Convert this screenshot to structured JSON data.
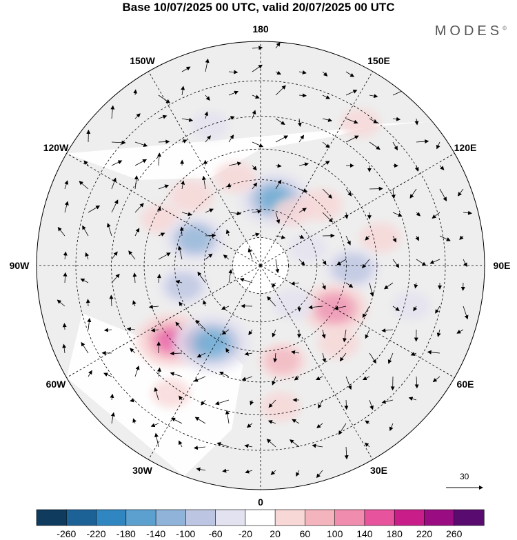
{
  "title": "Base 10/07/2025 00 UTC, valid 20/07/2025 00 UTC",
  "brand": "MODES",
  "brand_mark": "©",
  "longitude_labels": [
    {
      "text": "180",
      "lon": 180
    },
    {
      "text": "150E",
      "lon": 150
    },
    {
      "text": "120E",
      "lon": 120
    },
    {
      "text": "90E",
      "lon": 90
    },
    {
      "text": "60E",
      "lon": 60
    },
    {
      "text": "30E",
      "lon": 30
    },
    {
      "text": "0",
      "lon": 0
    },
    {
      "text": "30W",
      "lon": -30
    },
    {
      "text": "60W",
      "lon": -60
    },
    {
      "text": "90W",
      "lon": -90
    },
    {
      "text": "120W",
      "lon": -120
    },
    {
      "text": "150W",
      "lon": -150
    }
  ],
  "latitude_circles": [
    80,
    70,
    60,
    50,
    40,
    30,
    20
  ],
  "reference_vector_label": "30",
  "colorbar": {
    "ticks": [
      "-260",
      "-220",
      "-180",
      "-140",
      "-100",
      "-60",
      "-20",
      "20",
      "60",
      "100",
      "140",
      "180",
      "220",
      "260"
    ],
    "colors": [
      "#0e3b5e",
      "#1d6296",
      "#2f86c0",
      "#5ca0cf",
      "#8fb3d9",
      "#bcc5e2",
      "#e3e2f0",
      "#ffffff",
      "#f8d7d7",
      "#f4b4be",
      "#f08cae",
      "#e7539d",
      "#c91e8a",
      "#9a0d82",
      "#5a0b6f"
    ]
  },
  "anomalies": [
    {
      "lon": 168,
      "lat": 66,
      "value": -150
    },
    {
      "lon": -164,
      "lat": 58,
      "value": 40
    },
    {
      "lon": 150,
      "lat": 68,
      "value": 30
    },
    {
      "lon": 135,
      "lat": 60,
      "value": 45
    },
    {
      "lon": -135,
      "lat": 56,
      "value": 50
    },
    {
      "lon": -115,
      "lat": 52,
      "value": 35
    },
    {
      "lon": -112,
      "lat": 65,
      "value": -110
    },
    {
      "lon": 110,
      "lat": 72,
      "value": -30
    },
    {
      "lon": 103,
      "lat": 48,
      "value": 40
    },
    {
      "lon": 88,
      "lat": 58,
      "value": -90
    },
    {
      "lon": 60,
      "lat": 60,
      "value": 130
    },
    {
      "lon": 45,
      "lat": 52,
      "value": 40
    },
    {
      "lon": 40,
      "lat": 72,
      "value": -40
    },
    {
      "lon": -75,
      "lat": 62,
      "value": -70
    },
    {
      "lon": -50,
      "lat": 50,
      "value": 150
    },
    {
      "lon": -32,
      "lat": 58,
      "value": -170
    },
    {
      "lon": -35,
      "lat": 38,
      "value": 30
    },
    {
      "lon": 13,
      "lat": 56,
      "value": 60
    },
    {
      "lon": 8,
      "lat": 42,
      "value": 35
    },
    {
      "lon": 145,
      "lat": 33,
      "value": 30
    },
    {
      "lon": -160,
      "lat": 40,
      "value": -30
    },
    {
      "lon": 75,
      "lat": 38,
      "value": -30
    }
  ]
}
